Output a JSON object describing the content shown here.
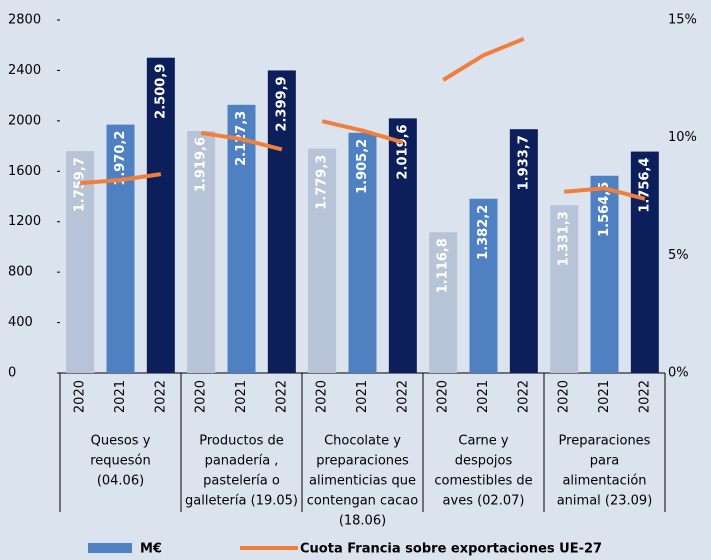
{
  "chart_data": {
    "type": "bar",
    "years": [
      "2020",
      "2021",
      "2022"
    ],
    "year_colors": [
      "#b7c3d6",
      "#4f81c2",
      "#0c1f5a"
    ],
    "groups": [
      {
        "label": [
          "Quesos y",
          "requesón",
          "(04.06)"
        ],
        "values": [
          1759.7,
          1970.2,
          2500.9
        ],
        "value_labels": [
          "1.759,7",
          "1.970,2",
          "2.500,9"
        ],
        "share": [
          8.07,
          8.2,
          8.45
        ]
      },
      {
        "label": [
          "Productos de",
          "panadería ,",
          "pastelería o",
          "galletería (19.05)"
        ],
        "values": [
          1919.6,
          2127.3,
          2399.9
        ],
        "value_labels": [
          "1.919,6",
          "2.127,3",
          "2.399,9"
        ],
        "share": [
          10.2,
          9.94,
          9.5
        ]
      },
      {
        "label": [
          "Chocolate y",
          "preparaciones",
          "alimenticias que",
          "contengan cacao",
          "(18.06)"
        ],
        "values": [
          1779.3,
          1905.2,
          2019.6
        ],
        "value_labels": [
          "1.779,3",
          "1.905,2",
          "2.019,6"
        ],
        "share": [
          10.7,
          10.3,
          9.8
        ]
      },
      {
        "label": [
          "Carne y",
          "despojos",
          "comestibles de",
          "aves (02.07)"
        ],
        "values": [
          1116.8,
          1382.2,
          1933.7
        ],
        "value_labels": [
          "1.116,8",
          "1.382,2",
          "1.933,7"
        ],
        "share": [
          12.45,
          13.5,
          14.2
        ]
      },
      {
        "label": [
          "Preparaciones",
          "para",
          "alimentación",
          "animal  (23.09)"
        ],
        "values": [
          1331.3,
          1564.5,
          1756.4
        ],
        "value_labels": [
          "1.331,3",
          "1.564,5",
          "1.756,4"
        ],
        "share": [
          7.7,
          7.85,
          7.4
        ]
      }
    ],
    "series": [
      {
        "name": "M€",
        "color": "#4f81c2"
      },
      {
        "name": "Cuota Francia sobre exportaciones UE-27",
        "color": "#f07f3c",
        "axis": "y2"
      }
    ],
    "ylim": [
      0,
      2800
    ],
    "yticks": [
      0,
      400,
      800,
      1200,
      1600,
      2000,
      2400,
      2800
    ],
    "y2lim": [
      0,
      15
    ],
    "y2ticks": [
      {
        "value": 0,
        "label": "0%"
      },
      {
        "value": 5,
        "label": "5%"
      },
      {
        "value": 10,
        "label": "10%"
      },
      {
        "value": 15,
        "label": "15%"
      }
    ],
    "grid": false
  }
}
